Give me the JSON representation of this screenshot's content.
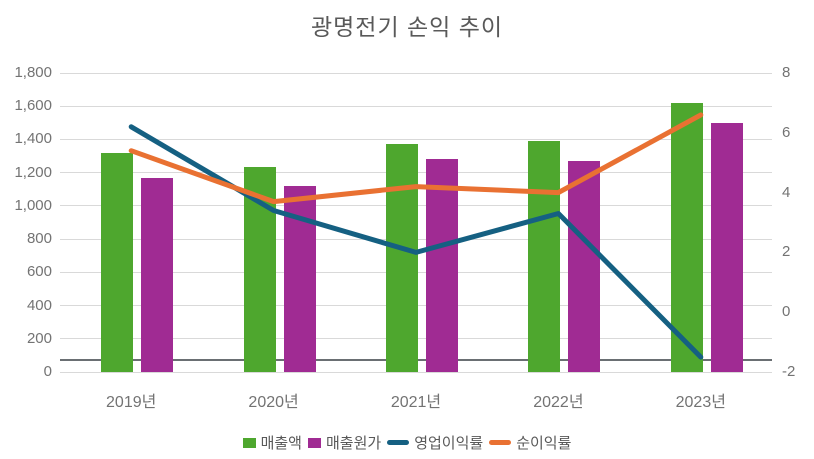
{
  "chart_data": {
    "type": "combo-bar-line",
    "title": "광명전기 손익 추이",
    "categories": [
      "2019년",
      "2020년",
      "2021년",
      "2022년",
      "2023년"
    ],
    "bar_series": [
      {
        "name": "매출액",
        "color": "#4EA72E",
        "values": [
          1320,
          1235,
          1375,
          1390,
          1620
        ]
      },
      {
        "name": "매출원가",
        "color": "#A02B93",
        "values": [
          1170,
          1120,
          1280,
          1270,
          1500
        ]
      }
    ],
    "line_series": [
      {
        "name": "영업이익률",
        "color": "#156082",
        "values": [
          6.2,
          3.4,
          2.0,
          3.3,
          -1.5
        ]
      },
      {
        "name": "순이익률",
        "color": "#E97132",
        "values": [
          5.4,
          3.7,
          4.2,
          4.0,
          6.6
        ]
      }
    ],
    "y1_axis": {
      "min": 0,
      "max": 1800,
      "tick_step": 200,
      "ticks": [
        "0",
        "200",
        "400",
        "600",
        "800",
        "1,000",
        "1,200",
        "1,400",
        "1,600",
        "1,800"
      ]
    },
    "y2_axis": {
      "min": -2,
      "max": 8,
      "tick_step": 2,
      "ticks": [
        "-2",
        "0",
        "2",
        "4",
        "6",
        "8"
      ]
    },
    "grid": true,
    "legend_position": "bottom"
  },
  "colors": {
    "grid": "#d9d9d9",
    "axis_line": "#6a6f73",
    "tick_text": "#737373",
    "title_text": "#595959"
  }
}
